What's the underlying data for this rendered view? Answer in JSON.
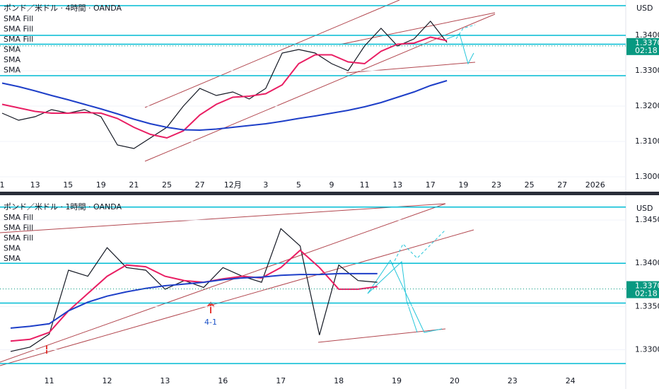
{
  "chart_data": [
    {
      "type": "line",
      "title": "ポンド／米ドル · 4時間 · OANDA",
      "legend": [
        "SMA Fill",
        "SMA Fill",
        "SMA Fill",
        "SMA",
        "SMA",
        "SMA"
      ],
      "currency": "USD",
      "categories": [
        "1",
        null,
        "13",
        null,
        "15",
        null,
        "19",
        null,
        "21",
        null,
        "25",
        null,
        "27",
        null,
        "12月",
        null,
        "3",
        null,
        "5",
        null,
        "9",
        null,
        "11",
        null,
        "13",
        null,
        "17",
        null,
        "19",
        null,
        "23",
        null,
        "25",
        null,
        "27",
        null,
        "2026",
        null
      ],
      "series": [
        {
          "color": "#131722",
          "values": [
            1.318,
            1.316,
            1.317,
            1.319,
            1.318,
            1.319,
            1.317,
            1.309,
            1.308,
            1.311,
            1.314,
            1.32,
            1.325,
            1.323,
            1.324,
            1.322,
            1.325,
            1.335,
            1.336,
            1.335,
            1.332,
            1.33,
            1.337,
            1.342,
            1.337,
            1.339,
            1.344,
            1.338,
            null,
            null,
            null,
            null,
            null,
            null,
            null,
            null,
            null,
            null
          ]
        },
        {
          "name": "SMA",
          "color": "#e91e63",
          "values": [
            1.3205,
            1.3195,
            1.3185,
            1.318,
            1.318,
            1.3182,
            1.318,
            1.3165,
            1.314,
            1.312,
            1.311,
            1.313,
            1.3175,
            1.3205,
            1.3225,
            1.3228,
            1.3235,
            1.326,
            1.332,
            1.3345,
            1.3345,
            1.3325,
            1.332,
            1.3355,
            1.3375,
            1.3378,
            1.3395,
            1.3385,
            null,
            null,
            null,
            null,
            null,
            null,
            null,
            null,
            null,
            null
          ]
        },
        {
          "name": "SMA",
          "color": "#1e3fc8",
          "values": [
            1.3265,
            1.3255,
            1.3243,
            1.323,
            1.3218,
            1.3205,
            1.3192,
            1.3178,
            1.3163,
            1.315,
            1.314,
            1.3133,
            1.3132,
            1.3135,
            1.314,
            1.3145,
            1.315,
            1.3157,
            1.3165,
            1.3172,
            1.318,
            1.3188,
            1.3198,
            1.321,
            1.3225,
            1.324,
            1.3258,
            1.3272,
            null,
            null,
            null,
            null,
            null,
            null,
            null,
            null,
            null,
            null
          ]
        }
      ],
      "levels": [
        1.3484,
        1.34,
        1.3375,
        1.3286
      ],
      "level_color": "#00bcd4",
      "ylim": [
        1.296,
        1.35
      ],
      "yticks": [
        {
          "value": 1.34,
          "label": "1.34000"
        },
        {
          "value": 1.33,
          "label": "1.33000"
        },
        {
          "value": 1.32,
          "label": "1.32000"
        },
        {
          "value": 1.31,
          "label": "1.31000"
        },
        {
          "value": 1.3,
          "label": "1.30000"
        }
      ],
      "price_label": {
        "value": 1.33703,
        "label": "1.33703"
      },
      "countdown": "02:18"
    },
    {
      "type": "line",
      "title": "ポンド／米ドル · 1時間 · OANDA",
      "legend": [
        "SMA Fill",
        "SMA Fill",
        "SMA Fill",
        "SMA",
        "SMA"
      ],
      "currency": "USD",
      "categories": [
        null,
        null,
        "11",
        null,
        null,
        "12",
        null,
        null,
        "13",
        null,
        null,
        "16",
        null,
        null,
        "17",
        null,
        null,
        "18",
        null,
        null,
        "19",
        null,
        null,
        "20",
        null,
        null,
        "23",
        null,
        null,
        "24",
        null,
        null
      ],
      "series": [
        {
          "color": "#131722",
          "values": [
            1.3298,
            1.3303,
            1.3318,
            1.3392,
            1.3385,
            1.3418,
            1.3395,
            1.3392,
            1.337,
            1.338,
            1.3372,
            1.3395,
            1.3385,
            1.3378,
            1.344,
            1.342,
            1.3317,
            1.3398,
            1.338,
            1.3378,
            null,
            null,
            null,
            null,
            null,
            null,
            null,
            null,
            null,
            null,
            null,
            null
          ]
        },
        {
          "name": "SMA",
          "color": "#e91e63",
          "values": [
            1.331,
            1.3312,
            1.332,
            1.3345,
            1.3365,
            1.3385,
            1.3398,
            1.3396,
            1.3385,
            1.338,
            1.3378,
            1.3382,
            1.3385,
            1.3383,
            1.3395,
            1.3415,
            1.3395,
            1.337,
            1.337,
            1.3373,
            null,
            null,
            null,
            null,
            null,
            null,
            null,
            null,
            null,
            null,
            null,
            null
          ]
        },
        {
          "name": "SMA",
          "color": "#1e3fc8",
          "values": [
            1.3325,
            1.3327,
            1.333,
            1.3345,
            1.3355,
            1.3362,
            1.3367,
            1.3371,
            1.3374,
            1.3376,
            1.3378,
            1.3381,
            1.3383,
            1.3384,
            1.3386,
            1.3387,
            1.3387,
            1.3388,
            1.3388,
            1.3388,
            null,
            null,
            null,
            null,
            null,
            null,
            null,
            null,
            null,
            null,
            null,
            null
          ]
        }
      ],
      "levels": [
        1.3465,
        1.34,
        1.3354,
        1.3284
      ],
      "level_color": "#00bcd4",
      "ylim": [
        1.3275,
        1.3473
      ],
      "yticks": [
        {
          "value": 1.345,
          "label": "1.34500"
        },
        {
          "value": 1.34,
          "label": "1.34000"
        },
        {
          "value": 1.335,
          "label": "1.33500"
        },
        {
          "value": 1.33,
          "label": "1.33000"
        }
      ],
      "price_label": {
        "value": 1.33703,
        "label": "1.33703"
      },
      "countdown": "02:18",
      "annotation": "4-1"
    }
  ]
}
